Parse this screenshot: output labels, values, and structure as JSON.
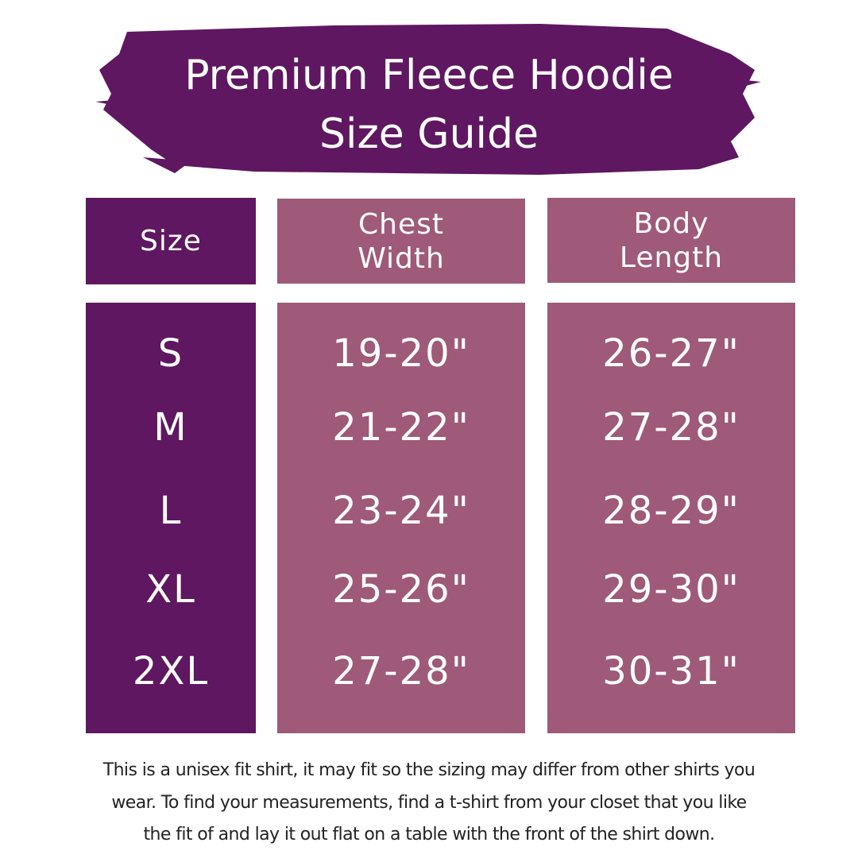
{
  "title": {
    "line1": "Premium Fleece Hoodie",
    "line2": "Size Guide"
  },
  "colors": {
    "dark_purple": "#5e1760",
    "mauve": "#9e5a78"
  },
  "headers": {
    "size": "Size",
    "chest_line1": "Chest",
    "chest_line2": "Width",
    "body_line1": "Body",
    "body_line2": "Length"
  },
  "rows": [
    {
      "size": "S",
      "chest": "19-20\"",
      "length": "26-27\""
    },
    {
      "size": "M",
      "chest": "21-22\"",
      "length": "27-28\""
    },
    {
      "size": "L",
      "chest": "23-24\"",
      "length": "28-29\""
    },
    {
      "size": "XL",
      "chest": "25-26\"",
      "length": "29-30\""
    },
    {
      "size": "2XL",
      "chest": "27-28\"",
      "length": "30-31\""
    }
  ],
  "footer": {
    "line1": "This is a unisex fit shirt, it may fit so the sizing may differ from other shirts you",
    "line2": "wear. To find your measurements, find a t-shirt from your closet that you like",
    "line3": "the fit of and lay it out flat on a table with the front of the shirt down."
  }
}
